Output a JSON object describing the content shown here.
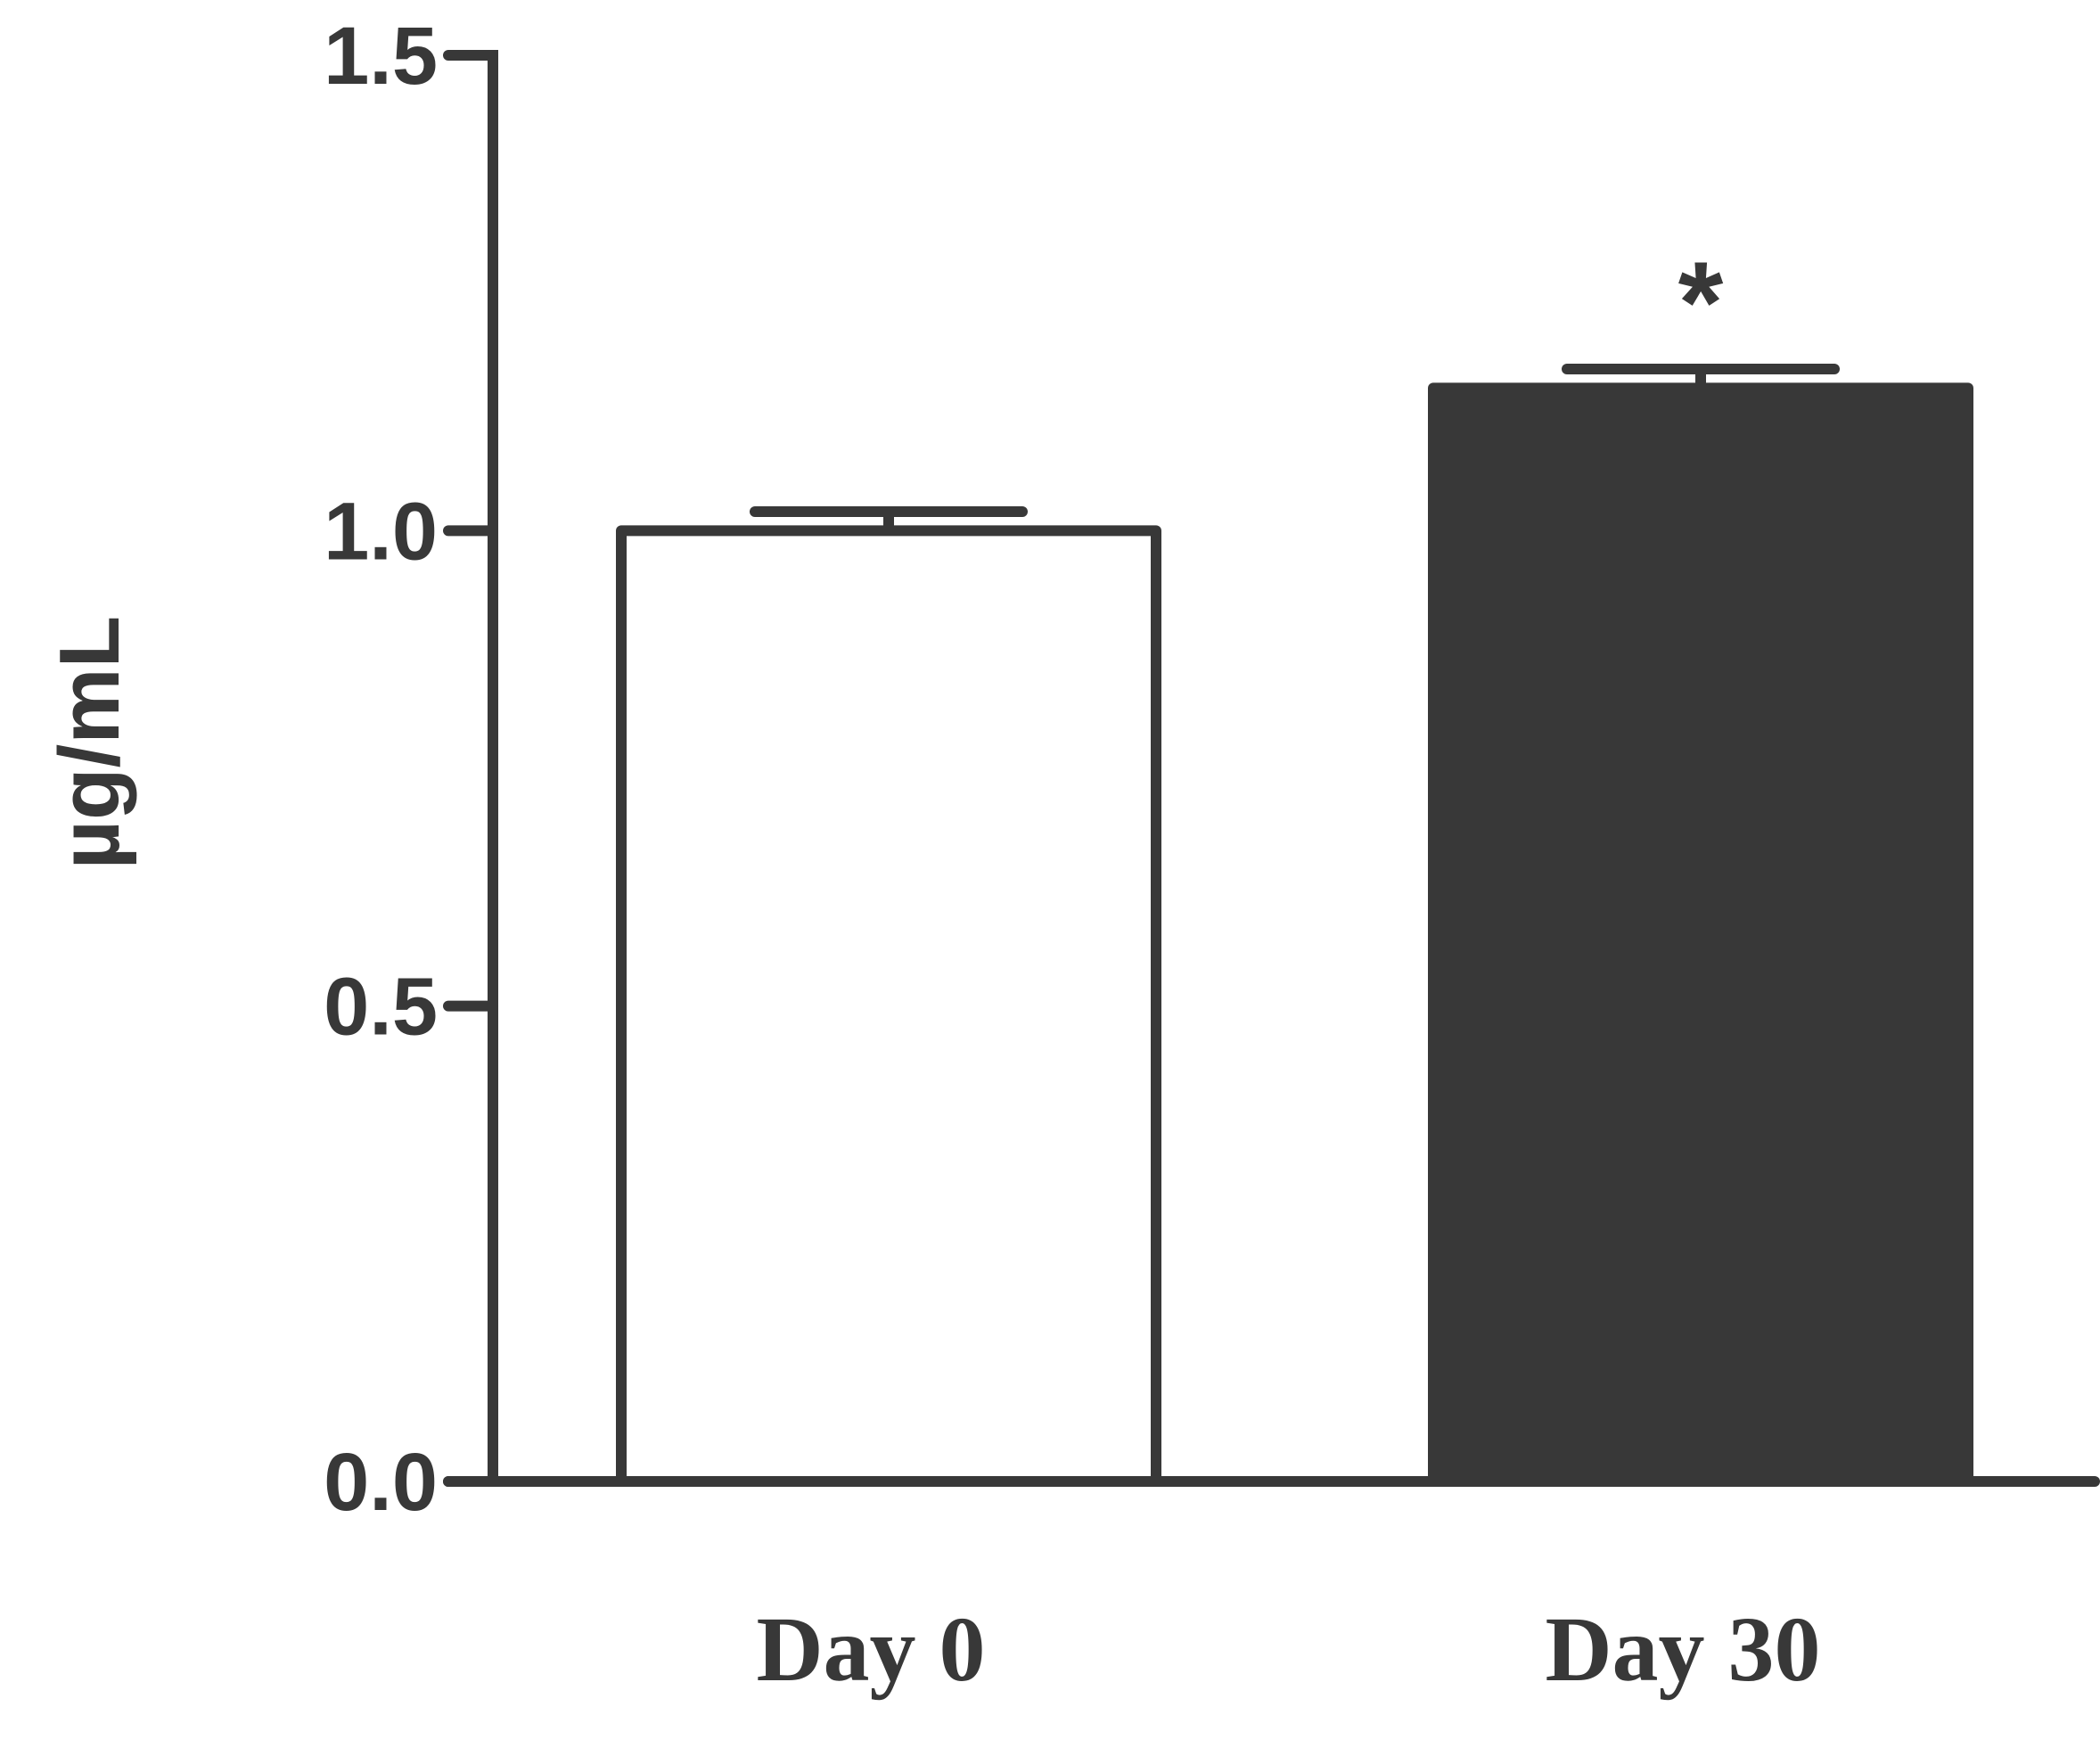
{
  "chart_data": {
    "type": "bar",
    "categories": [
      "Day 0",
      "Day 30"
    ],
    "values": [
      1.0,
      1.15
    ],
    "errors": [
      0.02,
      0.02
    ],
    "fills": [
      "#ffffff",
      "#383838"
    ],
    "annotations": [
      "",
      "*"
    ],
    "ylabel": "µg/mL",
    "ylim": [
      0,
      1.5
    ],
    "yticks": [
      0.0,
      0.5,
      1.0,
      1.5
    ],
    "ytick_labels": [
      "0.0",
      "0.5",
      "1.0",
      "1.5"
    ],
    "grid": false,
    "colors": {
      "axis": "#383838",
      "background": "#ffffff"
    }
  }
}
